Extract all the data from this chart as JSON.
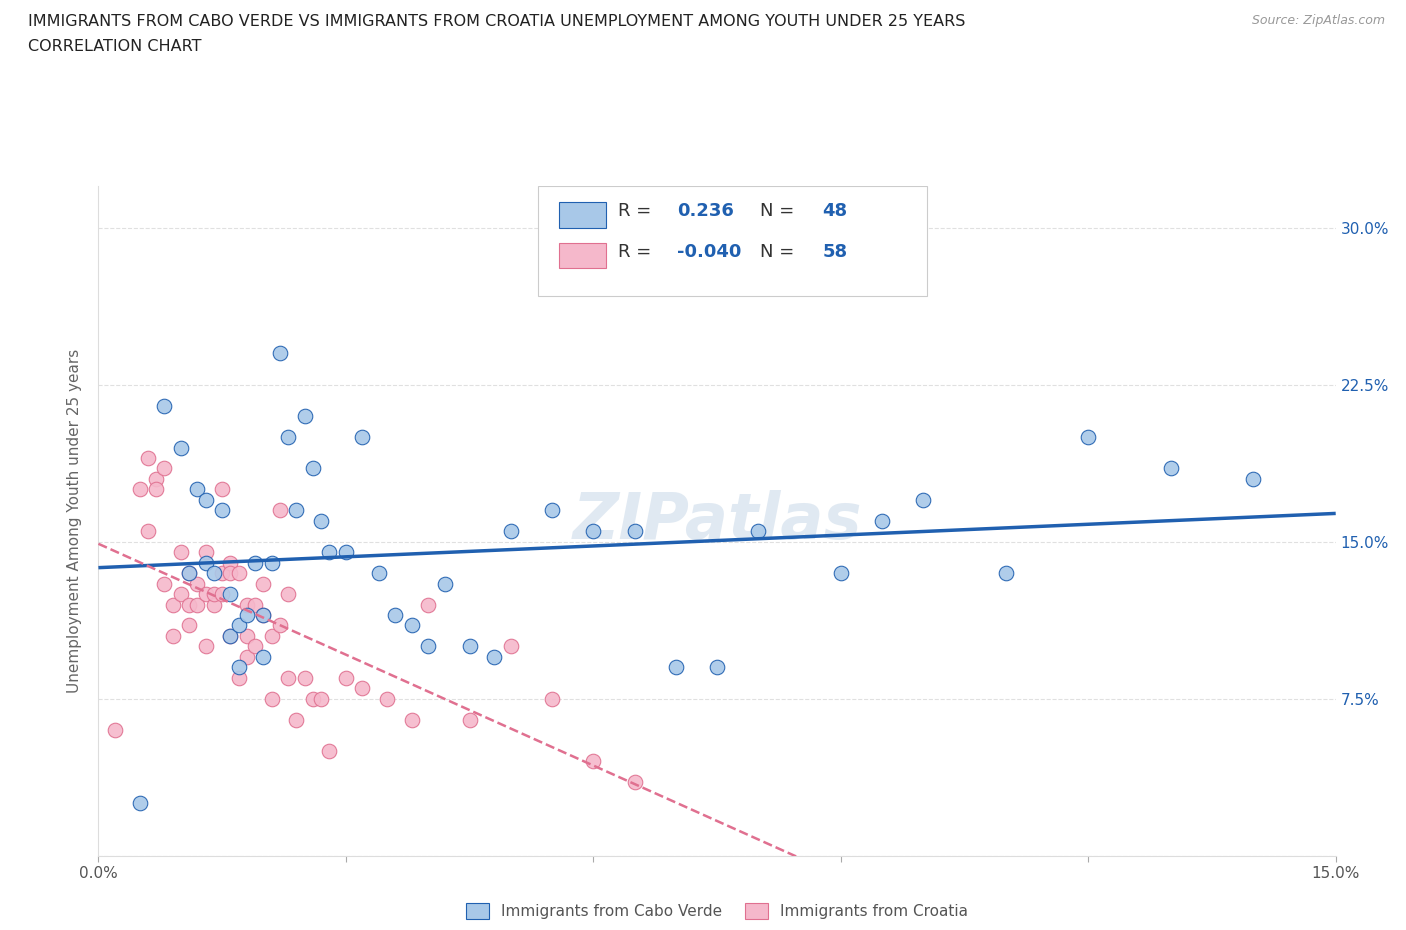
{
  "title_line1": "IMMIGRANTS FROM CABO VERDE VS IMMIGRANTS FROM CROATIA UNEMPLOYMENT AMONG YOUTH UNDER 25 YEARS",
  "title_line2": "CORRELATION CHART",
  "source_text": "Source: ZipAtlas.com",
  "watermark": "ZIPatlas",
  "ylabel": "Unemployment Among Youth under 25 years",
  "xlim": [
    0.0,
    0.15
  ],
  "ylim": [
    0.0,
    0.32
  ],
  "cabo_verde_R": 0.236,
  "cabo_verde_N": 48,
  "croatia_R": -0.04,
  "croatia_N": 58,
  "cabo_verde_color": "#a8c8e8",
  "croatia_color": "#f5b8cb",
  "cabo_verde_line_color": "#2060b0",
  "croatia_line_color": "#e07090",
  "grid_color": "#cccccc",
  "background_color": "#ffffff",
  "cabo_verde_x": [
    0.005,
    0.008,
    0.01,
    0.011,
    0.012,
    0.013,
    0.013,
    0.014,
    0.015,
    0.016,
    0.016,
    0.017,
    0.017,
    0.018,
    0.019,
    0.02,
    0.02,
    0.021,
    0.022,
    0.023,
    0.024,
    0.025,
    0.026,
    0.027,
    0.028,
    0.03,
    0.032,
    0.034,
    0.036,
    0.038,
    0.04,
    0.042,
    0.045,
    0.048,
    0.05,
    0.055,
    0.06,
    0.065,
    0.07,
    0.075,
    0.08,
    0.09,
    0.095,
    0.1,
    0.11,
    0.12,
    0.13,
    0.14
  ],
  "cabo_verde_y": [
    0.025,
    0.215,
    0.195,
    0.135,
    0.175,
    0.14,
    0.17,
    0.135,
    0.165,
    0.125,
    0.105,
    0.11,
    0.09,
    0.115,
    0.14,
    0.115,
    0.095,
    0.14,
    0.24,
    0.2,
    0.165,
    0.21,
    0.185,
    0.16,
    0.145,
    0.145,
    0.2,
    0.135,
    0.115,
    0.11,
    0.1,
    0.13,
    0.1,
    0.095,
    0.155,
    0.165,
    0.155,
    0.155,
    0.09,
    0.09,
    0.155,
    0.135,
    0.16,
    0.17,
    0.135,
    0.2,
    0.185,
    0.18
  ],
  "croatia_x": [
    0.002,
    0.005,
    0.006,
    0.006,
    0.007,
    0.007,
    0.008,
    0.008,
    0.009,
    0.009,
    0.01,
    0.01,
    0.011,
    0.011,
    0.011,
    0.012,
    0.012,
    0.013,
    0.013,
    0.013,
    0.014,
    0.014,
    0.015,
    0.015,
    0.015,
    0.016,
    0.016,
    0.016,
    0.017,
    0.017,
    0.018,
    0.018,
    0.018,
    0.019,
    0.019,
    0.02,
    0.02,
    0.021,
    0.021,
    0.022,
    0.022,
    0.023,
    0.023,
    0.024,
    0.025,
    0.026,
    0.027,
    0.028,
    0.03,
    0.032,
    0.035,
    0.038,
    0.04,
    0.045,
    0.05,
    0.055,
    0.06,
    0.065
  ],
  "croatia_y": [
    0.06,
    0.175,
    0.19,
    0.155,
    0.18,
    0.175,
    0.13,
    0.185,
    0.105,
    0.12,
    0.145,
    0.125,
    0.135,
    0.12,
    0.11,
    0.13,
    0.12,
    0.145,
    0.125,
    0.1,
    0.12,
    0.125,
    0.135,
    0.125,
    0.175,
    0.14,
    0.135,
    0.105,
    0.135,
    0.085,
    0.105,
    0.12,
    0.095,
    0.12,
    0.1,
    0.13,
    0.115,
    0.075,
    0.105,
    0.165,
    0.11,
    0.085,
    0.125,
    0.065,
    0.085,
    0.075,
    0.075,
    0.05,
    0.085,
    0.08,
    0.075,
    0.065,
    0.12,
    0.065,
    0.1,
    0.075,
    0.045,
    0.035
  ]
}
